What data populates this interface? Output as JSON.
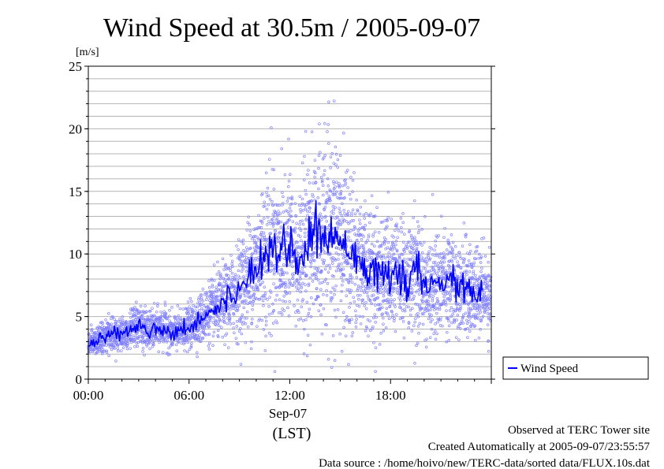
{
  "chart_data": {
    "type": "scatter",
    "title": "Wind Speed at 30.5m / 2005-09-07",
    "ylabel": "[m/s]",
    "xlabel": "(LST)",
    "date_label": "Sep-07",
    "x_range_hours": [
      0,
      24
    ],
    "ylim": [
      0,
      25
    ],
    "yticks": [
      0,
      5,
      10,
      15,
      20,
      25
    ],
    "xtick_labels": [
      "00:00",
      "06:00",
      "12:00",
      "18:00"
    ],
    "xtick_hours": [
      0,
      6,
      12,
      18
    ],
    "grid": true,
    "legend": {
      "position": "right",
      "entries": [
        "Wind Speed"
      ]
    },
    "colors": {
      "line": "#0000ff",
      "points": "#8080ff"
    },
    "series": [
      {
        "name": "Wind Speed",
        "kind": "line",
        "x_hours": [
          0,
          0.5,
          1,
          1.5,
          2,
          2.5,
          3,
          3.5,
          4,
          4.5,
          5,
          5.5,
          6,
          6.5,
          7,
          7.5,
          8,
          8.5,
          9,
          9.5,
          10,
          10.5,
          11,
          11.5,
          12,
          12.5,
          13,
          13.5,
          14,
          14.5,
          15,
          15.5,
          16,
          16.5,
          17,
          17.5,
          18,
          18.5,
          19,
          19.5,
          20,
          20.5,
          21,
          21.5,
          22,
          22.5,
          23,
          23.5
        ],
        "values": [
          2.8,
          3.0,
          3.4,
          3.7,
          3.6,
          4.0,
          4.3,
          3.9,
          4.0,
          4.1,
          3.7,
          3.8,
          4.2,
          4.6,
          5.2,
          5.6,
          6.0,
          6.6,
          7.2,
          8.2,
          9.0,
          10.2,
          10.8,
          10.3,
          10.8,
          9.3,
          10.5,
          11.8,
          11.0,
          11.6,
          11.0,
          10.9,
          9.8,
          9.0,
          8.6,
          8.2,
          7.9,
          8.4,
          7.8,
          8.8,
          7.2,
          7.5,
          8.0,
          7.8,
          7.4,
          7.3,
          6.8,
          6.8
        ]
      }
    ]
  },
  "legend_label": "Wind Speed",
  "notes": {
    "site": "Observed at TERC Tower site",
    "created": "Created Automatically at 2005-09-07/23:55:57",
    "source": "Data source : /home/hoivo/new/TERC-data/sorted data/FLUX.10s.dat"
  }
}
